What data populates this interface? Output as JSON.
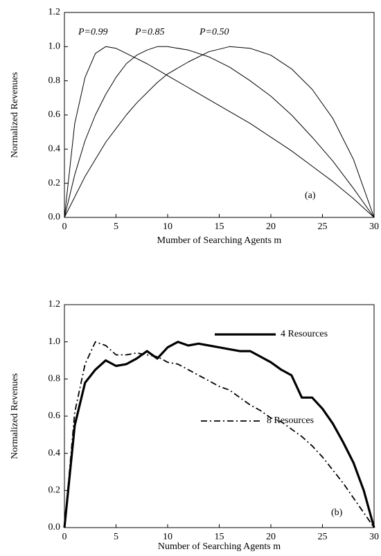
{
  "chart_data": [
    {
      "type": "line",
      "x_label": "Mumber of Searching Agents m",
      "y_label": "Normalized Revenues",
      "annotation": "(a)",
      "legend": "inline",
      "x": [
        0,
        1,
        2,
        3,
        4,
        5,
        6,
        7,
        8,
        9,
        10,
        12,
        14,
        16,
        18,
        20,
        22,
        24,
        26,
        28,
        30
      ],
      "series": [
        {
          "name": "P=0.99",
          "color": "#000000",
          "style": "thin",
          "values": [
            0,
            0.55,
            0.82,
            0.96,
            1.0,
            0.99,
            0.96,
            0.93,
            0.9,
            0.865,
            0.83,
            0.76,
            0.69,
            0.62,
            0.55,
            0.47,
            0.39,
            0.3,
            0.21,
            0.11,
            0
          ]
        },
        {
          "name": "P=0.85",
          "color": "#000000",
          "style": "thin",
          "values": [
            0,
            0.25,
            0.45,
            0.6,
            0.72,
            0.82,
            0.9,
            0.95,
            0.98,
            1.0,
            1.0,
            0.98,
            0.94,
            0.88,
            0.8,
            0.71,
            0.6,
            0.47,
            0.33,
            0.17,
            0
          ]
        },
        {
          "name": "P=0.50",
          "color": "#000000",
          "style": "thin",
          "values": [
            0,
            0.12,
            0.24,
            0.34,
            0.44,
            0.52,
            0.6,
            0.67,
            0.73,
            0.79,
            0.84,
            0.91,
            0.97,
            1.0,
            0.99,
            0.95,
            0.87,
            0.75,
            0.58,
            0.34,
            0
          ]
        }
      ],
      "xlim": [
        0,
        30
      ],
      "ylim": [
        0,
        1.2
      ],
      "xticks": [
        0,
        5,
        10,
        15,
        20,
        25,
        30
      ],
      "yticks": [
        {
          "value": 0,
          "label": "0.0"
        },
        {
          "value": 0.2,
          "label": "0.2"
        },
        {
          "value": 0.4,
          "label": "0.4"
        },
        {
          "value": 0.6,
          "label": "0.6"
        },
        {
          "value": 0.8,
          "label": "0.8"
        },
        {
          "value": 1.0,
          "label": "1.0"
        },
        {
          "value": 1.2,
          "label": "1.2"
        }
      ]
    },
    {
      "type": "line",
      "x_label": "Number of Searching Agents m",
      "y_label": "Normalized Revenues",
      "annotation": "(b)",
      "legend": "right",
      "x": [
        0,
        1,
        2,
        3,
        4,
        5,
        6,
        7,
        8,
        9,
        10,
        11,
        12,
        13,
        14,
        15,
        16,
        17,
        18,
        19,
        20,
        21,
        22,
        23,
        24,
        25,
        26,
        27,
        28,
        29,
        30
      ],
      "series": [
        {
          "name": "4 Resources",
          "color": "#000000",
          "style": "thick",
          "values": [
            0,
            0.55,
            0.78,
            0.85,
            0.9,
            0.87,
            0.88,
            0.91,
            0.95,
            0.91,
            0.97,
            1.0,
            0.98,
            0.99,
            0.98,
            0.97,
            0.96,
            0.95,
            0.95,
            0.92,
            0.89,
            0.85,
            0.82,
            0.7,
            0.7,
            0.64,
            0.56,
            0.46,
            0.35,
            0.2,
            0
          ]
        },
        {
          "name": "8 Resources",
          "color": "#000000",
          "style": "dash-dot",
          "values": [
            0,
            0.62,
            0.88,
            1.0,
            0.98,
            0.93,
            0.93,
            0.94,
            0.93,
            0.92,
            0.89,
            0.88,
            0.85,
            0.82,
            0.79,
            0.76,
            0.74,
            0.7,
            0.66,
            0.63,
            0.59,
            0.57,
            0.53,
            0.49,
            0.44,
            0.38,
            0.31,
            0.24,
            0.16,
            0.08,
            0
          ]
        }
      ],
      "xlim": [
        0,
        30
      ],
      "ylim": [
        0,
        1.2
      ],
      "xticks": [
        0,
        5,
        10,
        15,
        20,
        25,
        30
      ],
      "yticks": [
        {
          "value": 0,
          "label": "0.0"
        },
        {
          "value": 0.2,
          "label": "0.2"
        },
        {
          "value": 0.4,
          "label": "0.4"
        },
        {
          "value": 0.6,
          "label": "0.6"
        },
        {
          "value": 0.8,
          "label": "0.8"
        },
        {
          "value": 1.0,
          "label": "1.0"
        },
        {
          "value": 1.2,
          "label": "1.2"
        }
      ]
    }
  ]
}
